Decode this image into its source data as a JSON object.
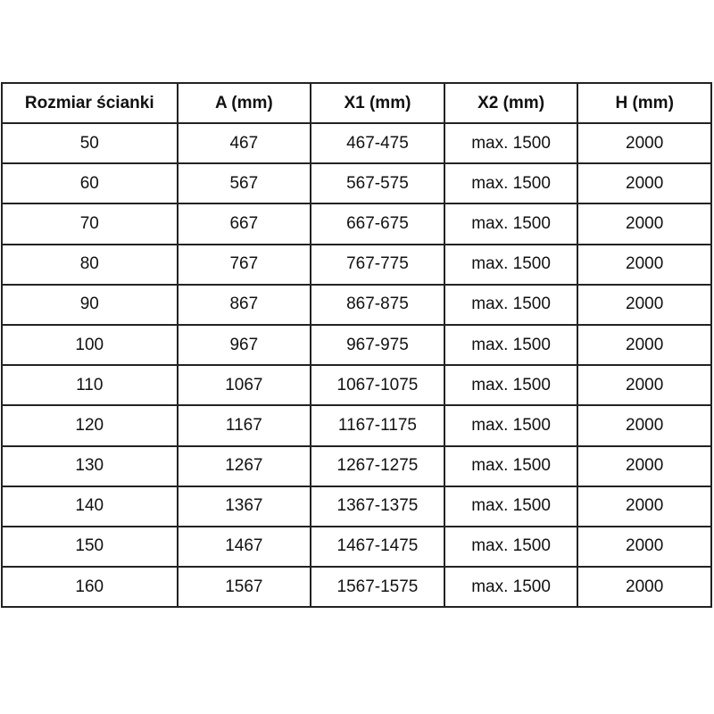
{
  "table": {
    "headers": [
      "Rozmiar ścianki",
      "A (mm)",
      "X1 (mm)",
      "X2 (mm)",
      "H (mm)"
    ],
    "rows": [
      [
        "50",
        "467",
        "467-475",
        "max. 1500",
        "2000"
      ],
      [
        "60",
        "567",
        "567-575",
        "max. 1500",
        "2000"
      ],
      [
        "70",
        "667",
        "667-675",
        "max. 1500",
        "2000"
      ],
      [
        "80",
        "767",
        "767-775",
        "max. 1500",
        "2000"
      ],
      [
        "90",
        "867",
        "867-875",
        "max. 1500",
        "2000"
      ],
      [
        "100",
        "967",
        "967-975",
        "max. 1500",
        "2000"
      ],
      [
        "110",
        "1067",
        "1067-1075",
        "max. 1500",
        "2000"
      ],
      [
        "120",
        "1167",
        "1167-1175",
        "max. 1500",
        "2000"
      ],
      [
        "130",
        "1267",
        "1267-1275",
        "max. 1500",
        "2000"
      ],
      [
        "140",
        "1367",
        "1367-1375",
        "max. 1500",
        "2000"
      ],
      [
        "150",
        "1467",
        "1467-1475",
        "max. 1500",
        "2000"
      ],
      [
        "160",
        "1567",
        "1567-1575",
        "max. 1500",
        "2000"
      ]
    ]
  }
}
